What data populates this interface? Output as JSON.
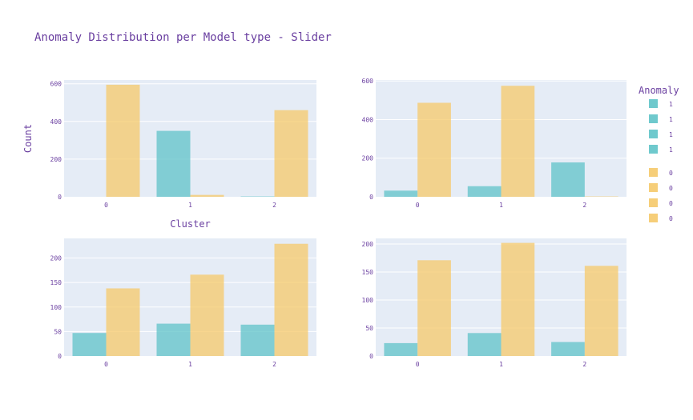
{
  "title": "Anomaly Distribution per Model type - Slider",
  "legend": {
    "title": "Anomaly",
    "items": [
      {
        "label": "1",
        "color": "#5fc3c8"
      },
      {
        "label": "1",
        "color": "#5fc3c8"
      },
      {
        "label": "1",
        "color": "#5fc3c8"
      },
      {
        "label": "1",
        "color": "#5fc3c8"
      },
      {
        "label": "0",
        "color": "#f5c96a"
      },
      {
        "label": "0",
        "color": "#f5c96a"
      },
      {
        "label": "0",
        "color": "#f5c96a"
      },
      {
        "label": "0",
        "color": "#f5c96a"
      }
    ]
  },
  "colors": {
    "anomaly_1": "#5fc3c8",
    "anomaly_0": "#f5c96a",
    "plot_bg": "#e5ecf6",
    "text": "#6a3fa0"
  },
  "chart_data": [
    {
      "type": "bar",
      "xlabel": "Cluster",
      "ylabel": "Count",
      "categories": [
        "0",
        "1",
        "2"
      ],
      "ylim": [
        0,
        620
      ],
      "yticks": [
        0,
        200,
        400,
        600
      ],
      "series": [
        {
          "name": "1",
          "values": [
            0,
            350,
            2
          ]
        },
        {
          "name": "0",
          "values": [
            595,
            10,
            460
          ]
        }
      ]
    },
    {
      "type": "bar",
      "xlabel": "",
      "ylabel": "",
      "categories": [
        "0",
        "1",
        "2"
      ],
      "ylim": [
        0,
        605
      ],
      "yticks": [
        0,
        200,
        400,
        600
      ],
      "series": [
        {
          "name": "1",
          "values": [
            32,
            55,
            178
          ]
        },
        {
          "name": "0",
          "values": [
            487,
            575,
            2
          ]
        }
      ]
    },
    {
      "type": "bar",
      "xlabel": "",
      "ylabel": "",
      "categories": [
        "0",
        "1",
        "2"
      ],
      "ylim": [
        0,
        240
      ],
      "yticks": [
        0,
        50,
        100,
        150,
        200
      ],
      "series": [
        {
          "name": "1",
          "values": [
            47,
            66,
            64
          ]
        },
        {
          "name": "0",
          "values": [
            138,
            166,
            229
          ]
        }
      ]
    },
    {
      "type": "bar",
      "xlabel": "",
      "ylabel": "",
      "categories": [
        "0",
        "1",
        "2"
      ],
      "ylim": [
        0,
        210
      ],
      "yticks": [
        0,
        50,
        100,
        150,
        200
      ],
      "series": [
        {
          "name": "1",
          "values": [
            23,
            41,
            25
          ]
        },
        {
          "name": "0",
          "values": [
            171,
            202,
            161
          ]
        }
      ]
    }
  ]
}
